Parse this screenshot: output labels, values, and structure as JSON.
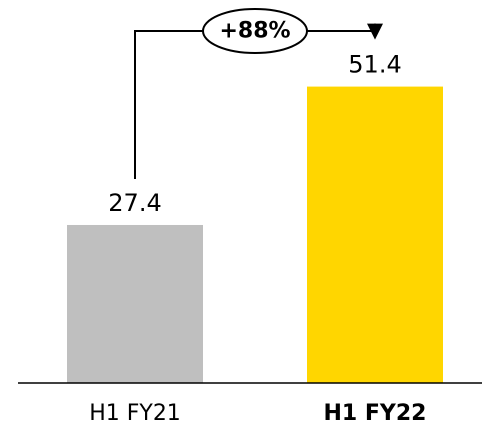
{
  "chart_data": {
    "type": "bar",
    "categories": [
      "H1 FY21",
      "H1 FY22"
    ],
    "values": [
      27.4,
      51.4
    ],
    "value_labels": [
      "27.4",
      "51.4"
    ],
    "bar_colors": [
      "#bfbfbf",
      "#ffd600"
    ],
    "bold_categories": [
      false,
      true
    ],
    "change_annotation": "+88%",
    "ylim": [
      0,
      60
    ],
    "grid": false
  }
}
